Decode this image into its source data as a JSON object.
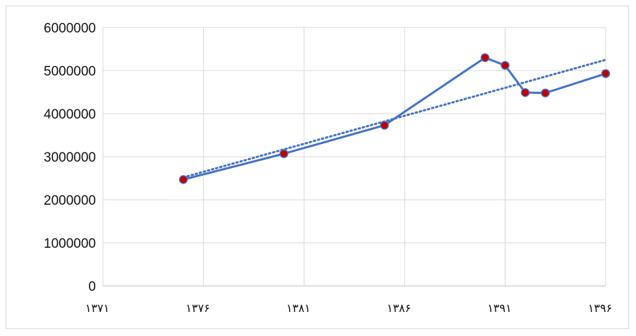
{
  "chart_data": {
    "type": "line",
    "x_tick_labels": [
      "۱۳۷۱",
      "۱۳۷۶",
      "۱۳۸۱",
      "۱۳۸۶",
      "۱۳۹۱",
      "۱۳۹۶"
    ],
    "xlim": [
      1371,
      1396
    ],
    "ylim": [
      0,
      6000000
    ],
    "y_ticks": [
      0,
      1000000,
      2000000,
      3000000,
      4000000,
      5000000,
      6000000
    ],
    "grid": true,
    "series": [
      {
        "color": "#4472c4",
        "marker_color": "#c00000",
        "points": [
          {
            "x": 1375,
            "y": 2470000
          },
          {
            "x": 1380,
            "y": 3070000
          },
          {
            "x": 1385,
            "y": 3730000
          },
          {
            "x": 1390,
            "y": 5300000
          },
          {
            "x": 1391,
            "y": 5120000
          },
          {
            "x": 1392,
            "y": 4490000
          },
          {
            "x": 1393,
            "y": 4480000
          },
          {
            "x": 1396,
            "y": 4930000
          }
        ]
      }
    ],
    "trendline": {
      "style": "dotted",
      "color": "#4472c4",
      "points": [
        {
          "x": 1375,
          "y": 2520000
        },
        {
          "x": 1396,
          "y": 5250000
        }
      ]
    }
  }
}
